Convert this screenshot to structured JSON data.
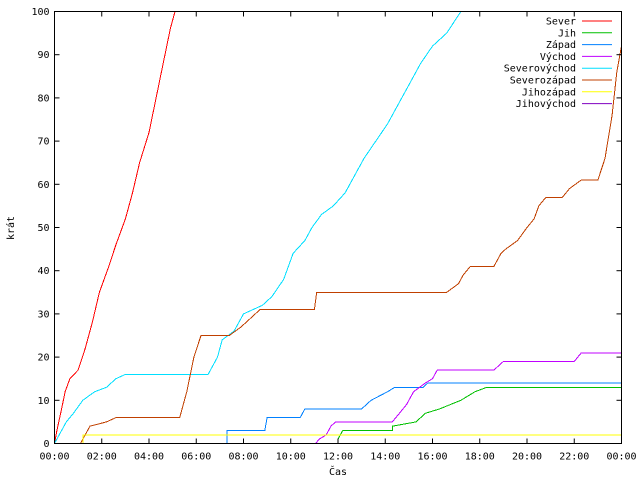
{
  "chart_data": {
    "type": "line",
    "title": "",
    "xlabel": "Čas",
    "ylabel": "krát",
    "xlim": [
      0,
      24
    ],
    "ylim": [
      0,
      100
    ],
    "grid": false,
    "legend_position": "top-right",
    "x_ticks": [
      {
        "value": 0,
        "label": "00:00"
      },
      {
        "value": 2,
        "label": "02:00"
      },
      {
        "value": 4,
        "label": "04:00"
      },
      {
        "value": 6,
        "label": "06:00"
      },
      {
        "value": 8,
        "label": "08:00"
      },
      {
        "value": 10,
        "label": "10:00"
      },
      {
        "value": 12,
        "label": "12:00"
      },
      {
        "value": 14,
        "label": "14:00"
      },
      {
        "value": 16,
        "label": "16:00"
      },
      {
        "value": 18,
        "label": "18:00"
      },
      {
        "value": 20,
        "label": "20:00"
      },
      {
        "value": 22,
        "label": "22:00"
      },
      {
        "value": 24,
        "label": "00:00"
      }
    ],
    "y_ticks": [
      {
        "value": 0,
        "label": "0"
      },
      {
        "value": 10,
        "label": "10"
      },
      {
        "value": 20,
        "label": "20"
      },
      {
        "value": 30,
        "label": "30"
      },
      {
        "value": 40,
        "label": "40"
      },
      {
        "value": 50,
        "label": "50"
      },
      {
        "value": 60,
        "label": "60"
      },
      {
        "value": 70,
        "label": "70"
      },
      {
        "value": 80,
        "label": "80"
      },
      {
        "value": 90,
        "label": "90"
      },
      {
        "value": 100,
        "label": "100"
      }
    ],
    "series": [
      {
        "name": "Sever",
        "color": "#ff0000",
        "points": [
          [
            0,
            0
          ],
          [
            0.1,
            3
          ],
          [
            0.3,
            8
          ],
          [
            0.45,
            12
          ],
          [
            0.65,
            15
          ],
          [
            1.0,
            17
          ],
          [
            1.3,
            22
          ],
          [
            1.6,
            28
          ],
          [
            1.9,
            35
          ],
          [
            2.3,
            41
          ],
          [
            2.6,
            46
          ],
          [
            3.0,
            52
          ],
          [
            3.3,
            58
          ],
          [
            3.6,
            65
          ],
          [
            4.0,
            72
          ],
          [
            4.3,
            80
          ],
          [
            4.6,
            88
          ],
          [
            4.9,
            96
          ],
          [
            5.1,
            100
          ]
        ]
      },
      {
        "name": "Jih",
        "color": "#00c000",
        "points": [
          [
            0,
            0
          ],
          [
            12.0,
            0
          ],
          [
            12.0,
            1
          ],
          [
            12.2,
            3
          ],
          [
            14.3,
            3
          ],
          [
            14.3,
            4
          ],
          [
            15.3,
            5
          ],
          [
            15.7,
            7
          ],
          [
            16.3,
            8
          ],
          [
            17.2,
            10
          ],
          [
            17.8,
            12
          ],
          [
            18.3,
            13
          ],
          [
            24,
            13
          ]
        ]
      },
      {
        "name": "Západ",
        "color": "#0080ff",
        "points": [
          [
            0,
            0
          ],
          [
            7.3,
            0
          ],
          [
            7.3,
            3
          ],
          [
            8.9,
            3
          ],
          [
            9.0,
            6
          ],
          [
            10.4,
            6
          ],
          [
            10.6,
            8
          ],
          [
            13.0,
            8
          ],
          [
            13.4,
            10
          ],
          [
            14.1,
            12
          ],
          [
            14.4,
            13
          ],
          [
            15.6,
            13
          ],
          [
            15.8,
            14
          ],
          [
            24,
            14
          ]
        ]
      },
      {
        "name": "Východ",
        "color": "#c000ff",
        "points": [
          [
            0,
            0
          ],
          [
            11.05,
            0
          ],
          [
            11.2,
            1
          ],
          [
            11.5,
            2
          ],
          [
            11.7,
            4
          ],
          [
            11.9,
            5
          ],
          [
            14.3,
            5
          ],
          [
            14.6,
            7
          ],
          [
            14.9,
            9
          ],
          [
            15.2,
            12
          ],
          [
            15.7,
            14
          ],
          [
            16.0,
            15
          ],
          [
            16.2,
            17
          ],
          [
            18.6,
            17
          ],
          [
            19.0,
            19
          ],
          [
            22.0,
            19
          ],
          [
            22.3,
            21
          ],
          [
            24,
            21
          ]
        ]
      },
      {
        "name": "Severovýchod",
        "color": "#00dfff",
        "points": [
          [
            0,
            0
          ],
          [
            0.2,
            2
          ],
          [
            0.5,
            5
          ],
          [
            0.8,
            7
          ],
          [
            1.2,
            10
          ],
          [
            1.7,
            12
          ],
          [
            2.2,
            13
          ],
          [
            2.6,
            15
          ],
          [
            3.0,
            16
          ],
          [
            6.5,
            16
          ],
          [
            6.9,
            20
          ],
          [
            7.1,
            24
          ],
          [
            7.6,
            26
          ],
          [
            8.0,
            30
          ],
          [
            8.8,
            32
          ],
          [
            9.2,
            34
          ],
          [
            9.7,
            38
          ],
          [
            10.1,
            44
          ],
          [
            10.6,
            47
          ],
          [
            10.9,
            50
          ],
          [
            11.3,
            53
          ],
          [
            11.8,
            55
          ],
          [
            12.3,
            58
          ],
          [
            12.7,
            62
          ],
          [
            13.1,
            66
          ],
          [
            13.6,
            70
          ],
          [
            14.1,
            74
          ],
          [
            14.6,
            79
          ],
          [
            15.0,
            83
          ],
          [
            15.5,
            88
          ],
          [
            16.0,
            92
          ],
          [
            16.6,
            95
          ],
          [
            17.2,
            100
          ]
        ]
      },
      {
        "name": "Severozápad",
        "color": "#c04000",
        "points": [
          [
            0,
            0
          ],
          [
            1.1,
            0
          ],
          [
            1.3,
            2
          ],
          [
            1.5,
            4
          ],
          [
            2.2,
            5
          ],
          [
            2.6,
            6
          ],
          [
            5.3,
            6
          ],
          [
            5.6,
            12
          ],
          [
            5.9,
            20
          ],
          [
            6.2,
            25
          ],
          [
            7.4,
            25
          ],
          [
            7.9,
            27
          ],
          [
            8.3,
            29
          ],
          [
            8.7,
            31
          ],
          [
            11.0,
            31
          ],
          [
            11.1,
            35
          ],
          [
            16.6,
            35
          ],
          [
            17.1,
            37
          ],
          [
            17.3,
            39
          ],
          [
            17.6,
            41
          ],
          [
            18.6,
            41
          ],
          [
            18.9,
            44
          ],
          [
            19.1,
            45
          ],
          [
            19.6,
            47
          ],
          [
            20.0,
            50
          ],
          [
            20.3,
            52
          ],
          [
            20.5,
            55
          ],
          [
            20.8,
            57
          ],
          [
            21.5,
            57
          ],
          [
            21.8,
            59
          ],
          [
            22.3,
            61
          ],
          [
            23.0,
            61
          ],
          [
            23.3,
            66
          ],
          [
            23.6,
            76
          ],
          [
            23.8,
            86
          ],
          [
            24,
            92
          ]
        ]
      },
      {
        "name": "Jihozápad",
        "color": "#ffff00",
        "points": [
          [
            0,
            0
          ],
          [
            1.2,
            0
          ],
          [
            1.2,
            2
          ],
          [
            24,
            2
          ]
        ]
      },
      {
        "name": "Jihovýchod",
        "color": "#8000c0",
        "points": [
          [
            0,
            0
          ],
          [
            24,
            0
          ]
        ]
      }
    ]
  }
}
